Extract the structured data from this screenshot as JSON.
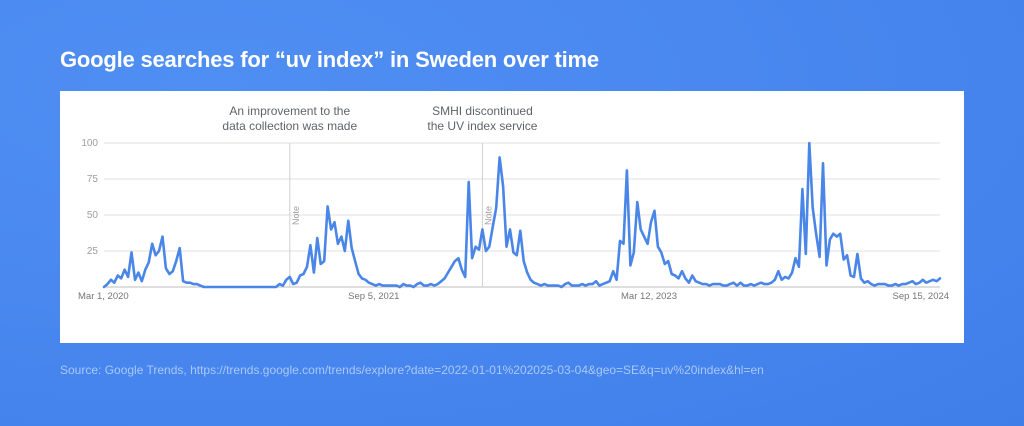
{
  "title": "Google searches for “uv index” in Sweden over time",
  "source": "Source: Google Trends, https://trends.google.com/trends/explore?date=2022-01-01%202025-03-04&geo=SE&q=uv%20index&hl=en",
  "colors": {
    "line": "#4a86e8",
    "grid": "#e0e0e0",
    "text": "#9e9e9e",
    "annotation": "#5f6368",
    "background": "#4a88f0"
  },
  "chart_data": {
    "type": "line",
    "title": "",
    "xlabel": "",
    "ylabel": "",
    "ylim": [
      0,
      100
    ],
    "yticks": [
      100,
      75,
      50,
      25
    ],
    "grid": true,
    "xtick_labels": [
      "Mar 1, 2020",
      "Sep 5, 2021",
      "Mar 12, 2023",
      "Sep 15, 2024"
    ],
    "annotations": [
      {
        "x_index": 54,
        "lines": [
          "An improvement to the",
          "data collection was made"
        ],
        "marker": "Note"
      },
      {
        "x_index": 110,
        "lines": [
          "SMHI discontinued",
          "the UV index service"
        ],
        "marker": "Note"
      }
    ],
    "series": [
      {
        "values": [
          0,
          2,
          5,
          3,
          8,
          6,
          12,
          7,
          24,
          5,
          10,
          4,
          12,
          17,
          30,
          22,
          25,
          35,
          13,
          9,
          11,
          18,
          27,
          4,
          3,
          3,
          2,
          2,
          1,
          0,
          0,
          0,
          0,
          0,
          0,
          0,
          0,
          0,
          0,
          0,
          0,
          0,
          0,
          0,
          0,
          0,
          0,
          0,
          0,
          0,
          0,
          2,
          1,
          5,
          7,
          2,
          3,
          8,
          9,
          14,
          29,
          10,
          34,
          16,
          18,
          56,
          40,
          45,
          30,
          35,
          25,
          46,
          27,
          18,
          9,
          6,
          5,
          3,
          2,
          1,
          2,
          1,
          1,
          1,
          1,
          1,
          0,
          2,
          1,
          1,
          0,
          2,
          3,
          1,
          1,
          2,
          1,
          2,
          4,
          6,
          10,
          14,
          18,
          20,
          12,
          7,
          73,
          20,
          28,
          26,
          40,
          25,
          28,
          42,
          55,
          90,
          70,
          28,
          40,
          24,
          22,
          39,
          18,
          10,
          5,
          3,
          2,
          1,
          2,
          1,
          1,
          1,
          1,
          0,
          2,
          3,
          1,
          1,
          1,
          2,
          1,
          2,
          2,
          4,
          1,
          2,
          3,
          4,
          11,
          5,
          32,
          30,
          81,
          15,
          24,
          59,
          40,
          35,
          30,
          45,
          53,
          28,
          24,
          16,
          18,
          9,
          8,
          6,
          11,
          6,
          3,
          8,
          4,
          3,
          2,
          2,
          1,
          2,
          2,
          2,
          1,
          1,
          2,
          3,
          1,
          3,
          1,
          1,
          2,
          1,
          2,
          3,
          2,
          2,
          3,
          5,
          11,
          5,
          7,
          6,
          10,
          20,
          14,
          68,
          23,
          100,
          55,
          37,
          21,
          86,
          15,
          33,
          37,
          35,
          37,
          19,
          22,
          8,
          7,
          23,
          6,
          3,
          4,
          2,
          1,
          2,
          2,
          2,
          1,
          1,
          2,
          1,
          2,
          2,
          3,
          4,
          2,
          3,
          5,
          3,
          4,
          5,
          4,
          6
        ]
      }
    ]
  }
}
